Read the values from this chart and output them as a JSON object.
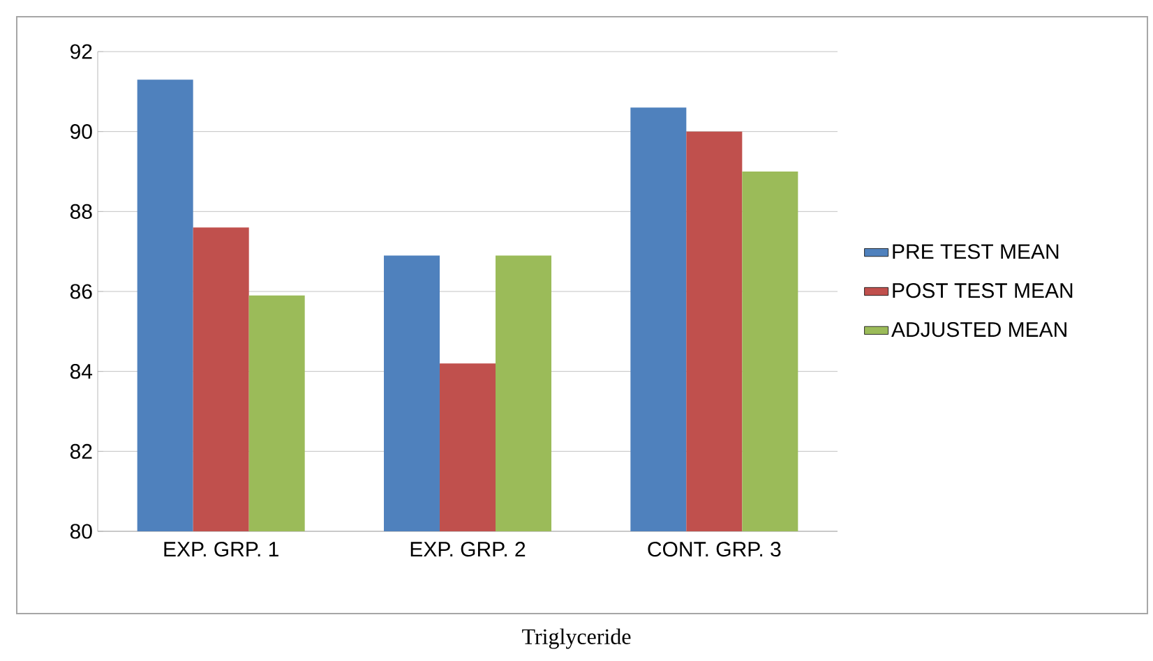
{
  "chart_data": {
    "type": "bar",
    "categories": [
      "EXP. GRP. 1",
      "EXP. GRP. 2",
      "CONT. GRP. 3"
    ],
    "series": [
      {
        "name": "PRE TEST MEAN",
        "color": "#4f81bd",
        "values": [
          91.3,
          86.9,
          90.6
        ]
      },
      {
        "name": "POST TEST MEAN",
        "color": "#c0504d",
        "values": [
          87.6,
          84.2,
          90.0
        ]
      },
      {
        "name": "ADJUSTED MEAN",
        "color": "#9bbb59",
        "values": [
          85.9,
          86.9,
          89.0
        ]
      }
    ],
    "ylim": [
      80,
      92
    ],
    "yticks": [
      80,
      82,
      84,
      86,
      88,
      90,
      92
    ],
    "grid": "y",
    "legend": "right",
    "annotations": [
      "Triglyceride"
    ]
  }
}
